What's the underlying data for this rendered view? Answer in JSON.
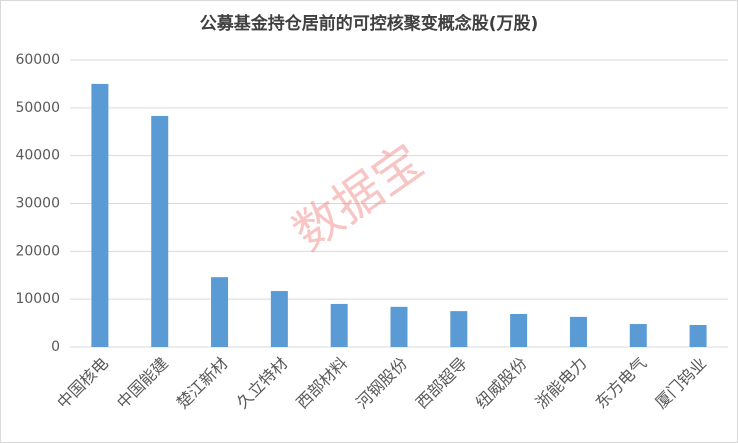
{
  "chart_data": {
    "type": "bar",
    "title": "公募基金持仓居前的可控核聚变概念股(万股)",
    "categories": [
      "中国核电",
      "中国能建",
      "楚江新材",
      "久立特材",
      "西部材料",
      "河钢股份",
      "西部超导",
      "纽威股份",
      "浙能电力",
      "东方电气",
      "厦门钨业"
    ],
    "values": [
      55000,
      48300,
      14600,
      11700,
      9000,
      8400,
      7500,
      6900,
      6300,
      4800,
      4600
    ],
    "color": "#5b9bd5",
    "ylim": [
      0,
      60000
    ],
    "yticks": [
      0,
      10000,
      20000,
      30000,
      40000,
      50000,
      60000
    ],
    "grid": true,
    "watermark": "数据宝"
  }
}
